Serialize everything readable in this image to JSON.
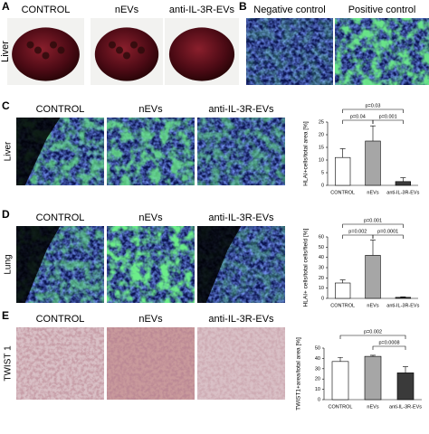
{
  "panels": [
    {
      "label": "A",
      "row_label": "Liver",
      "columns": [
        "CONTROL",
        "nEVs",
        "anti-IL-3R-EVs"
      ]
    },
    {
      "label": "B",
      "columns": [
        "Negative control",
        "Positive control"
      ]
    },
    {
      "label": "C",
      "row_label": "Liver",
      "columns": [
        "CONTROL",
        "nEVs",
        "anti-IL-3R-EVs"
      ]
    },
    {
      "label": "D",
      "row_label": "Lung",
      "columns": [
        "CONTROL",
        "nEVs",
        "anti-IL-3R-EVs"
      ]
    },
    {
      "label": "E",
      "row_label": "TWIST 1",
      "columns": [
        "CONTROL",
        "nEVs",
        "anti-IL-3R-EVs"
      ]
    }
  ],
  "chart_data": [
    {
      "type": "bar",
      "y_label": "HLAI+cells/total area [%]",
      "categories": [
        "CONTROL",
        "nEVs",
        "anti-IL-3R-EVs"
      ],
      "values": [
        11,
        17.5,
        1.5
      ],
      "errors": [
        3.5,
        6,
        1.5
      ],
      "colors": [
        "#ffffff",
        "#a6a6a6",
        "#3a3a3a"
      ],
      "ylim": [
        0,
        25
      ],
      "yticks": [
        0,
        5,
        10,
        15,
        20,
        25
      ],
      "comparisons": [
        {
          "label": "p=0.04",
          "from": 0,
          "to": 1
        },
        {
          "label": "p=0.001",
          "from": 1,
          "to": 2
        },
        {
          "label": "p=0.03",
          "from": 0,
          "to": 2
        }
      ]
    },
    {
      "type": "bar",
      "y_label": "HLAI+ cells/total cells/field [%]",
      "categories": [
        "CONTROL",
        "nEVs",
        "anti-IL-3R-EVs"
      ],
      "values": [
        15,
        42,
        1
      ],
      "errors": [
        3,
        15,
        0.5
      ],
      "colors": [
        "#ffffff",
        "#a6a6a6",
        "#3a3a3a"
      ],
      "ylim": [
        0,
        60
      ],
      "yticks": [
        0,
        10,
        20,
        30,
        40,
        50,
        60
      ],
      "comparisons": [
        {
          "label": "p=0.002",
          "from": 0,
          "to": 1
        },
        {
          "label": "p=0.0001",
          "from": 1,
          "to": 2
        },
        {
          "label": "p=0.001",
          "from": 0,
          "to": 2
        }
      ]
    },
    {
      "type": "bar",
      "y_label": "TWIST1+area/total area [%]",
      "categories": [
        "CONTROL",
        "nEVs",
        "anti-IL-3R-EVs"
      ],
      "values": [
        37,
        42,
        26
      ],
      "errors": [
        4,
        1,
        6
      ],
      "colors": [
        "#ffffff",
        "#a6a6a6",
        "#3a3a3a"
      ],
      "ylim": [
        0,
        50
      ],
      "yticks": [
        0,
        10,
        20,
        30,
        40,
        50
      ],
      "comparisons": [
        {
          "label": "p=0.0008",
          "from": 1,
          "to": 2
        },
        {
          "label": "p=0.002",
          "from": 0,
          "to": 2
        }
      ]
    }
  ]
}
